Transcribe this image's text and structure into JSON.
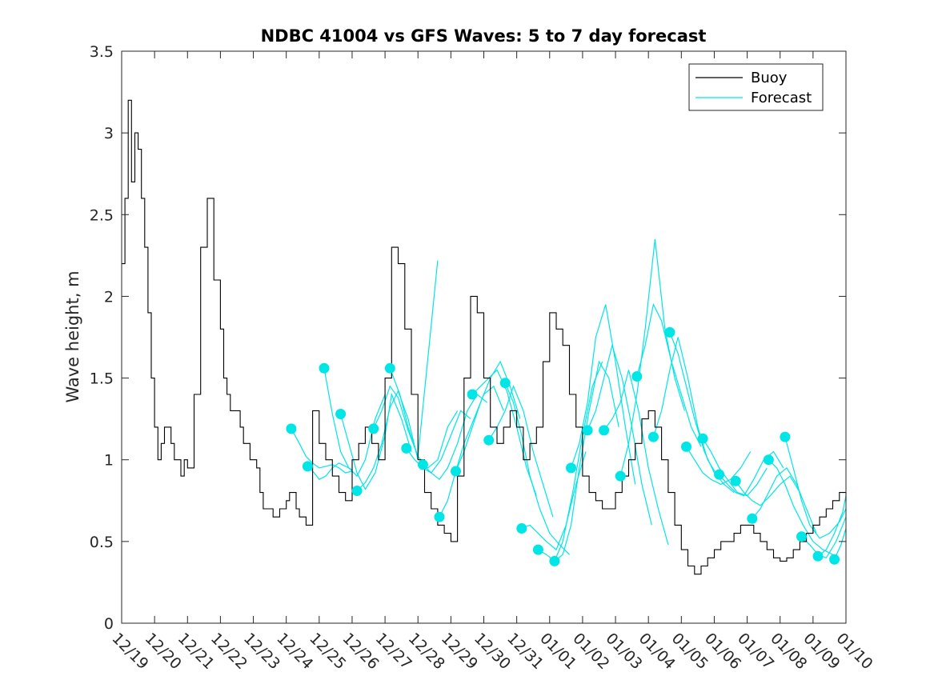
{
  "colors": {
    "buoy": "#000000",
    "forecast": "#00e5e5",
    "axis": "#262626",
    "background": "#ffffff"
  },
  "chart_data": {
    "type": "line",
    "title": "NDBC 41004 vs GFS Waves: 5 to 7 day forecast",
    "xlabel": "",
    "ylabel": "Wave height, m",
    "xlim": [
      0,
      22
    ],
    "ylim": [
      0,
      3.5
    ],
    "yticks": [
      0,
      0.5,
      1,
      1.5,
      2,
      2.5,
      3,
      3.5
    ],
    "ytick_labels": [
      "0",
      "0.5",
      "1",
      "1.5",
      "2",
      "2.5",
      "3",
      "3.5"
    ],
    "xtick_labels": [
      "12/19",
      "12/20",
      "12/21",
      "12/22",
      "12/23",
      "12/24",
      "12/25",
      "12/26",
      "12/27",
      "12/28",
      "12/29",
      "12/30",
      "12/31",
      "01/01",
      "01/02",
      "01/03",
      "01/04",
      "01/05",
      "01/06",
      "01/07",
      "01/08",
      "01/09",
      "01/10"
    ],
    "legend": {
      "position": "top-right",
      "entries": [
        "Buoy",
        "Forecast"
      ]
    },
    "buoy": {
      "name": "Buoy",
      "x": [
        0,
        0.1,
        0.2,
        0.3,
        0.4,
        0.5,
        0.6,
        0.7,
        0.8,
        0.9,
        1.0,
        1.1,
        1.2,
        1.3,
        1.4,
        1.5,
        1.6,
        1.7,
        1.8,
        1.9,
        2.0,
        2.2,
        2.4,
        2.6,
        2.8,
        3.0,
        3.1,
        3.2,
        3.3,
        3.4,
        3.5,
        3.6,
        3.7,
        3.8,
        3.9,
        4.0,
        4.1,
        4.2,
        4.3,
        4.4,
        4.6,
        4.8,
        5.0,
        5.1,
        5.2,
        5.3,
        5.4,
        5.6,
        5.8,
        6.0,
        6.2,
        6.4,
        6.6,
        6.8,
        7.0,
        7.2,
        7.4,
        7.6,
        7.8,
        8.0,
        8.2,
        8.4,
        8.6,
        8.8,
        9.0,
        9.2,
        9.4,
        9.6,
        9.8,
        10.0,
        10.2,
        10.4,
        10.6,
        10.8,
        11.0,
        11.2,
        11.4,
        11.6,
        11.8,
        12.0,
        12.2,
        12.4,
        12.6,
        12.8,
        13.0,
        13.2,
        13.4,
        13.6,
        13.8,
        14.0,
        14.2,
        14.4,
        14.6,
        14.8,
        15.0,
        15.2,
        15.4,
        15.6,
        15.8,
        16.0,
        16.2,
        16.4,
        16.6,
        16.8,
        17.0,
        17.2,
        17.4,
        17.6,
        17.8,
        18.0,
        18.2,
        18.4,
        18.6,
        18.8,
        19.0,
        19.2,
        19.4,
        19.6,
        19.8,
        20.0,
        20.2,
        20.4,
        20.6,
        20.8,
        21.0,
        21.2,
        21.4,
        21.6,
        21.8,
        22.0
      ],
      "values": [
        2.2,
        2.6,
        3.2,
        2.7,
        3.0,
        2.9,
        2.6,
        2.3,
        1.9,
        1.5,
        1.2,
        1.0,
        1.1,
        1.2,
        1.2,
        1.1,
        1.0,
        1.0,
        0.9,
        1.0,
        0.95,
        1.4,
        2.3,
        2.6,
        2.1,
        1.8,
        1.5,
        1.4,
        1.3,
        1.3,
        1.3,
        1.2,
        1.1,
        1.1,
        1.0,
        1.0,
        0.95,
        0.8,
        0.7,
        0.7,
        0.65,
        0.7,
        0.75,
        0.8,
        0.8,
        0.7,
        0.65,
        0.6,
        1.3,
        1.1,
        1.0,
        0.9,
        0.8,
        0.75,
        1.0,
        1.1,
        1.2,
        1.1,
        1.0,
        1.5,
        2.3,
        2.2,
        1.8,
        1.4,
        1.0,
        0.8,
        0.7,
        0.6,
        0.55,
        0.5,
        0.9,
        1.5,
        2.0,
        1.9,
        1.5,
        1.2,
        1.1,
        1.2,
        1.3,
        1.2,
        1.0,
        1.1,
        1.2,
        1.6,
        1.9,
        1.8,
        1.7,
        1.4,
        1.2,
        0.9,
        0.8,
        0.75,
        0.7,
        0.7,
        0.8,
        0.9,
        1.0,
        1.1,
        1.25,
        1.3,
        1.2,
        1.0,
        0.8,
        0.6,
        0.45,
        0.35,
        0.3,
        0.35,
        0.4,
        0.45,
        0.5,
        0.5,
        0.55,
        0.6,
        0.6,
        0.55,
        0.5,
        0.45,
        0.4,
        0.38,
        0.4,
        0.45,
        0.5,
        0.55,
        0.6,
        0.65,
        0.7,
        0.75,
        0.8,
        0.75
      ]
    },
    "forecast_runs": [
      {
        "name": "Forecast",
        "x": [
          5.15,
          5.4,
          5.6,
          5.8,
          6.0,
          6.2,
          6.4,
          6.6,
          6.8,
          7.0
        ],
        "values": [
          1.19,
          1.1,
          1.02,
          0.98,
          0.95,
          0.96,
          0.97,
          0.95,
          0.92,
          0.93
        ]
      },
      {
        "name": "Forecast",
        "x": [
          5.65,
          5.85,
          6.0,
          6.2,
          6.4,
          6.6,
          6.8,
          7.0
        ],
        "values": [
          0.96,
          0.92,
          0.88,
          0.9,
          0.95,
          0.98,
          0.96,
          0.94
        ]
      },
      {
        "name": "Forecast",
        "x": [
          6.15,
          6.4,
          6.65,
          6.9,
          7.15,
          7.4,
          7.7,
          8.0
        ],
        "values": [
          1.56,
          1.28,
          1.05,
          0.95,
          0.9,
          1.0,
          1.25,
          1.4
        ]
      },
      {
        "name": "Forecast",
        "x": [
          6.65,
          6.9,
          7.15,
          7.4,
          7.7,
          8.0,
          8.2,
          8.5,
          8.8
        ],
        "values": [
          1.28,
          1.1,
          0.92,
          0.82,
          0.92,
          1.15,
          1.4,
          1.25,
          1.05
        ]
      },
      {
        "name": "Forecast",
        "x": [
          7.15,
          7.4,
          7.65,
          7.9,
          8.15,
          8.4,
          8.7,
          9.0
        ],
        "values": [
          0.81,
          0.86,
          0.95,
          1.1,
          1.32,
          1.42,
          1.25,
          1.0
        ]
      },
      {
        "name": "Forecast",
        "x": [
          7.65,
          7.9,
          8.15,
          8.4,
          8.7,
          9.0,
          9.3,
          9.6
        ],
        "values": [
          1.19,
          1.3,
          1.45,
          1.38,
          1.18,
          1.02,
          1.62,
          2.22
        ]
      },
      {
        "name": "Forecast",
        "x": [
          8.15,
          8.45,
          8.7,
          9.0,
          9.3,
          9.6,
          9.9,
          10.2
        ],
        "values": [
          1.56,
          1.4,
          1.2,
          1.02,
          0.95,
          1.0,
          1.2,
          1.3
        ]
      },
      {
        "name": "Forecast",
        "x": [
          8.65,
          8.9,
          9.15,
          9.4,
          9.7,
          10.0,
          10.3,
          10.6
        ],
        "values": [
          1.07,
          1.0,
          0.95,
          0.92,
          1.0,
          1.15,
          1.3,
          1.25
        ]
      },
      {
        "name": "Forecast",
        "x": [
          9.15,
          9.4,
          9.65,
          9.9,
          10.2,
          10.5,
          10.8,
          11.1
        ],
        "values": [
          0.97,
          0.92,
          0.88,
          0.95,
          1.1,
          1.3,
          1.4,
          1.35
        ]
      },
      {
        "name": "Forecast",
        "x": [
          9.65,
          9.9,
          10.15,
          10.4,
          10.7,
          11.0,
          11.3,
          11.6
        ],
        "values": [
          0.65,
          0.75,
          0.93,
          1.1,
          1.25,
          1.4,
          1.45,
          1.3
        ]
      },
      {
        "name": "Forecast",
        "x": [
          10.15,
          10.4,
          10.65,
          10.9,
          11.2,
          11.5,
          11.8,
          12.1
        ],
        "values": [
          0.93,
          1.05,
          1.2,
          1.35,
          1.5,
          1.6,
          1.45,
          1.25
        ]
      },
      {
        "name": "Forecast",
        "x": [
          10.65,
          10.9,
          11.15,
          11.4,
          11.7,
          12.0,
          12.3,
          12.6
        ],
        "values": [
          1.4,
          1.45,
          1.5,
          1.55,
          1.42,
          1.2,
          0.95,
          0.78
        ]
      },
      {
        "name": "Forecast",
        "x": [
          11.15,
          11.4,
          11.65,
          11.9,
          12.2,
          12.5,
          12.8,
          13.1
        ],
        "values": [
          1.12,
          1.2,
          1.3,
          1.45,
          1.3,
          1.05,
          0.85,
          0.65
        ]
      },
      {
        "name": "Forecast",
        "x": [
          11.65,
          11.9,
          12.15,
          12.4,
          12.7,
          13.0,
          13.3,
          13.6
        ],
        "values": [
          1.47,
          1.35,
          1.15,
          0.9,
          0.7,
          0.55,
          0.48,
          0.42
        ]
      },
      {
        "name": "Forecast",
        "x": [
          12.15,
          12.4,
          12.65,
          12.9,
          13.2,
          13.5,
          13.8,
          14.1
        ],
        "values": [
          0.58,
          0.6,
          0.55,
          0.5,
          0.45,
          0.6,
          0.85,
          1.05
        ]
      },
      {
        "name": "Forecast",
        "x": [
          12.65,
          12.9,
          13.15,
          13.4,
          13.7,
          14.0,
          14.3,
          14.6
        ],
        "values": [
          0.45,
          0.42,
          0.38,
          0.5,
          0.8,
          1.15,
          1.45,
          1.6
        ]
      },
      {
        "name": "Forecast",
        "x": [
          13.15,
          13.4,
          13.65,
          13.9,
          14.2,
          14.5,
          14.8,
          15.1
        ],
        "values": [
          0.38,
          0.42,
          0.6,
          0.95,
          1.3,
          1.6,
          1.5,
          1.2
        ]
      },
      {
        "name": "Forecast",
        "x": [
          13.65,
          13.9,
          14.15,
          14.4,
          14.7,
          15.0,
          15.3,
          15.6
        ],
        "values": [
          0.95,
          1.1,
          1.35,
          1.75,
          1.95,
          1.6,
          1.2,
          0.85
        ]
      },
      {
        "name": "Forecast",
        "x": [
          14.15,
          14.4,
          14.65,
          14.9,
          15.2,
          15.5,
          15.8,
          16.1
        ],
        "values": [
          1.18,
          1.3,
          1.5,
          1.7,
          1.5,
          1.2,
          0.85,
          0.6
        ]
      },
      {
        "name": "Forecast",
        "x": [
          14.65,
          14.9,
          15.15,
          15.4,
          15.7,
          16.0,
          16.3,
          16.6
        ],
        "values": [
          1.18,
          1.25,
          1.35,
          1.55,
          1.3,
          0.95,
          0.7,
          0.48
        ]
      },
      {
        "name": "Forecast",
        "x": [
          15.15,
          15.4,
          15.65,
          15.9,
          16.2,
          16.5,
          16.8,
          17.1
        ],
        "values": [
          0.9,
          1.1,
          1.4,
          1.8,
          2.35,
          1.8,
          1.5,
          1.3
        ]
      },
      {
        "name": "Forecast",
        "x": [
          15.65,
          15.9,
          16.15,
          16.4,
          16.7,
          17.0,
          17.3,
          17.6
        ],
        "values": [
          1.51,
          1.7,
          1.95,
          1.85,
          1.6,
          1.4,
          1.2,
          1.08
        ]
      },
      {
        "name": "Forecast",
        "x": [
          16.15,
          16.4,
          16.65,
          16.9,
          17.2,
          17.5,
          17.8,
          18.1
        ],
        "values": [
          1.14,
          1.3,
          1.55,
          1.75,
          1.5,
          1.2,
          1.0,
          0.9
        ]
      },
      {
        "name": "Forecast",
        "x": [
          16.65,
          16.9,
          17.15,
          17.4,
          17.7,
          18.0,
          18.3,
          18.6
        ],
        "values": [
          1.78,
          1.65,
          1.45,
          1.25,
          1.05,
          0.92,
          0.85,
          0.8
        ]
      },
      {
        "name": "Forecast",
        "x": [
          17.15,
          17.4,
          17.65,
          17.9,
          18.2,
          18.5,
          18.8,
          19.1
        ],
        "values": [
          1.08,
          1.0,
          0.92,
          0.88,
          0.85,
          0.88,
          0.95,
          1.05
        ]
      },
      {
        "name": "Forecast",
        "x": [
          17.65,
          17.9,
          18.15,
          18.4,
          18.7,
          19.0,
          19.3,
          19.6
        ],
        "values": [
          1.13,
          1.05,
          0.95,
          0.88,
          0.8,
          0.78,
          0.85,
          0.95
        ]
      },
      {
        "name": "Forecast",
        "x": [
          18.15,
          18.4,
          18.65,
          18.9,
          19.2,
          19.5,
          19.8,
          20.1
        ],
        "values": [
          0.91,
          0.85,
          0.8,
          0.78,
          0.88,
          1.0,
          1.05,
          0.95
        ]
      },
      {
        "name": "Forecast",
        "x": [
          18.65,
          18.9,
          19.15,
          19.4,
          19.7,
          20.0,
          20.3,
          20.6
        ],
        "values": [
          0.87,
          0.8,
          0.75,
          0.72,
          0.78,
          0.85,
          0.9,
          0.8
        ]
      },
      {
        "name": "Forecast",
        "x": [
          19.15,
          19.4,
          19.65,
          19.9,
          20.2,
          20.5,
          20.8,
          21.1
        ],
        "values": [
          0.64,
          0.7,
          0.8,
          0.9,
          0.95,
          0.85,
          0.7,
          0.55
        ]
      },
      {
        "name": "Forecast",
        "x": [
          19.65,
          19.9,
          20.15,
          20.4,
          20.7,
          21.0,
          21.3,
          21.6
        ],
        "values": [
          1.0,
          0.95,
          0.85,
          0.72,
          0.6,
          0.5,
          0.45,
          0.42
        ]
      },
      {
        "name": "Forecast",
        "x": [
          20.15,
          20.4,
          20.65,
          20.9,
          21.2,
          21.5,
          21.8,
          22.0
        ],
        "values": [
          1.14,
          0.95,
          0.75,
          0.6,
          0.52,
          0.55,
          0.62,
          0.7
        ]
      },
      {
        "name": "Forecast",
        "x": [
          20.65,
          20.9,
          21.15,
          21.4,
          21.7,
          22.0
        ],
        "values": [
          0.53,
          0.48,
          0.42,
          0.4,
          0.5,
          0.65
        ]
      },
      {
        "name": "Forecast",
        "x": [
          21.15,
          21.4,
          21.65,
          21.9,
          22.0
        ],
        "values": [
          0.41,
          0.45,
          0.55,
          0.68,
          0.78
        ]
      },
      {
        "name": "Forecast",
        "x": [
          21.65,
          21.85,
          22.0
        ],
        "values": [
          0.39,
          0.48,
          0.58
        ]
      }
    ],
    "forecast_markers": {
      "x": [
        5.15,
        5.65,
        6.15,
        6.65,
        7.15,
        7.65,
        8.15,
        8.65,
        9.15,
        9.65,
        10.15,
        10.65,
        11.15,
        11.65,
        12.15,
        12.65,
        13.15,
        13.65,
        14.15,
        14.65,
        15.15,
        15.65,
        16.15,
        16.65,
        17.15,
        17.65,
        18.15,
        18.65,
        19.15,
        19.65,
        20.15,
        20.65,
        21.15,
        21.65
      ],
      "values": [
        1.19,
        0.96,
        1.56,
        1.28,
        0.81,
        1.19,
        1.56,
        1.07,
        0.97,
        0.65,
        0.93,
        1.4,
        1.12,
        1.47,
        0.58,
        0.45,
        0.38,
        0.95,
        1.18,
        1.18,
        0.9,
        1.51,
        1.14,
        1.78,
        1.08,
        1.13,
        0.91,
        0.87,
        0.64,
        1.0,
        1.14,
        0.53,
        0.41,
        0.39
      ]
    }
  }
}
